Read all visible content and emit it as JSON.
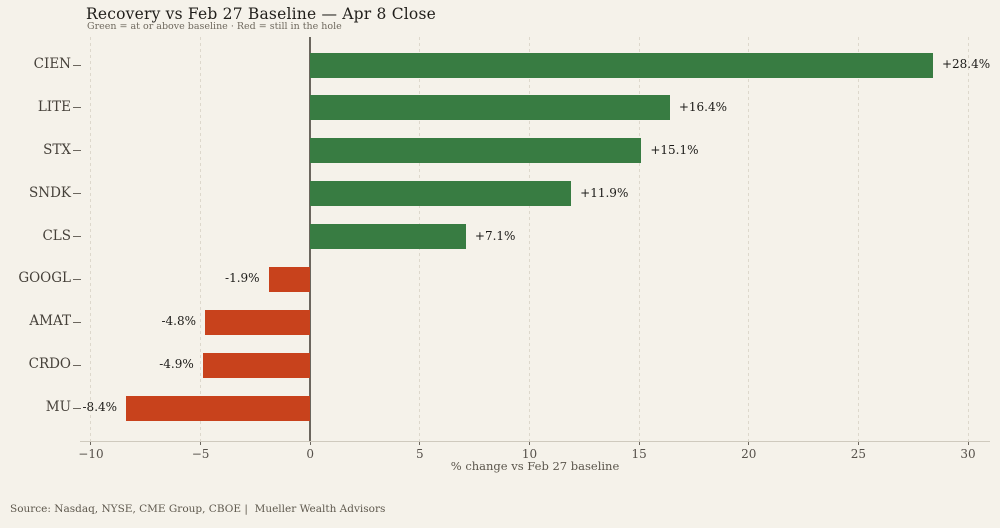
{
  "title": "Recovery vs Feb 27 Baseline — Apr 8 Close",
  "subtitle": "Green = at or above baseline · Red = still in the hole",
  "footer": "Source: Nasdaq, NYSE, CME Group, CBOE |  Mueller Wealth Advisors",
  "colors": {
    "background": "#f5f2ea",
    "positive": "#387c42",
    "negative": "#c8421c"
  },
  "chart_data": {
    "type": "bar",
    "orientation": "horizontal",
    "title": "Recovery vs Feb 27 Baseline — Apr 8 Close",
    "subtitle": "Green = at or above baseline · Red = still in the hole",
    "categories": [
      "CIEN",
      "LITE",
      "STX",
      "SNDK",
      "CLS",
      "GOOGL",
      "AMAT",
      "CRDO",
      "MU"
    ],
    "values": [
      28.4,
      16.4,
      15.1,
      11.9,
      7.1,
      -1.9,
      -4.8,
      -4.9,
      -8.4
    ],
    "labels": [
      "+28.4%",
      "+16.4%",
      "+15.1%",
      "+11.9%",
      "+7.1%",
      "-1.9%",
      "-4.8%",
      "-4.9%",
      "-8.4%"
    ],
    "xlabel": "% change vs Feb 27 baseline",
    "xlim": [
      -10.5,
      31.0
    ],
    "xticks": [
      -10,
      -5,
      0,
      5,
      10,
      15,
      20,
      25,
      30
    ],
    "xtick_labels": [
      "−10",
      "−5",
      "0",
      "5",
      "10",
      "15",
      "20",
      "25",
      "30"
    ],
    "grid": "vertical-dashed",
    "legend": "none",
    "bar_color_rule": "green if value >= 0 else red"
  }
}
